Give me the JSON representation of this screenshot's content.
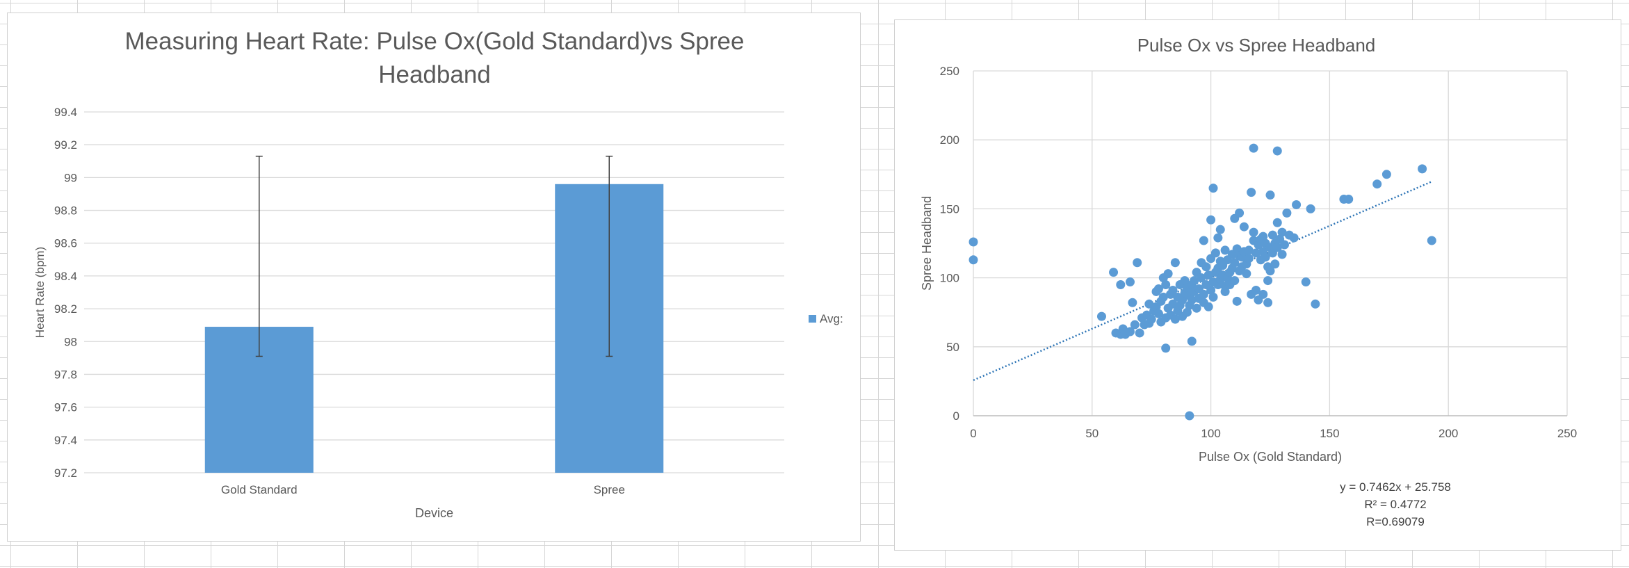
{
  "chart_data": [
    {
      "type": "bar",
      "title_lines": [
        "Measuring Heart Rate:  Pulse Ox(Gold Standard)vs Spree",
        "Headband"
      ],
      "xlabel": "Device",
      "ylabel": "Heart Rate (bpm)",
      "categories": [
        "Gold Standard",
        "Spree"
      ],
      "series": [
        {
          "name": "Avg:",
          "values": [
            98.09,
            98.96
          ],
          "error_low": [
            97.91,
            97.91
          ],
          "error_high": [
            99.13,
            99.13
          ]
        }
      ],
      "ylim": [
        97.2,
        99.4
      ],
      "yticks": [
        97.2,
        97.4,
        97.6,
        97.8,
        98,
        98.2,
        98.4,
        98.6,
        98.8,
        99,
        99.2,
        99.4
      ],
      "ytick_labels": [
        "97.2",
        "97.4",
        "97.6",
        "97.8",
        "98",
        "98.2",
        "98.4",
        "98.6",
        "98.8",
        "99",
        "99.2",
        "99.4"
      ],
      "grid": true,
      "legend_position": "right",
      "colors": {
        "bar": "#5b9bd5",
        "error": "#404040",
        "grid": "#d9d9d9",
        "text": "#595959"
      }
    },
    {
      "type": "scatter",
      "title": "Pulse Ox vs Spree Headband",
      "xlabel": "Pulse Ox (Gold Standard)",
      "ylabel": "Spree Headband",
      "xlim": [
        0,
        250
      ],
      "ylim": [
        0,
        250
      ],
      "xticks": [
        0,
        50,
        100,
        150,
        200,
        250
      ],
      "xtick_labels": [
        "0",
        "50",
        "100",
        "150",
        "200",
        "250"
      ],
      "yticks": [
        0,
        50,
        100,
        150,
        200,
        250
      ],
      "ytick_labels": [
        "0",
        "50",
        "100",
        "150",
        "200",
        "250"
      ],
      "grid": true,
      "trendline": {
        "slope": 0.7462,
        "intercept": 25.758,
        "x_range": [
          0,
          193
        ]
      },
      "annotations": [
        "y = 0.7462x + 25.758",
        "R² = 0.4772",
        "R=0.69079"
      ],
      "colors": {
        "point": "#5b9bd5",
        "trend": "#2e75b6",
        "grid": "#d9d9d9",
        "text": "#595959"
      },
      "points": [
        [
          0,
          126
        ],
        [
          0,
          113
        ],
        [
          91,
          0
        ],
        [
          81,
          49
        ],
        [
          92,
          54
        ],
        [
          54,
          72
        ],
        [
          59,
          104
        ],
        [
          60,
          60
        ],
        [
          62,
          59
        ],
        [
          63,
          63
        ],
        [
          62,
          95
        ],
        [
          64,
          59
        ],
        [
          66,
          97
        ],
        [
          66,
          61
        ],
        [
          67,
          82
        ],
        [
          68,
          66
        ],
        [
          69,
          111
        ],
        [
          70,
          60
        ],
        [
          71,
          71
        ],
        [
          72,
          66
        ],
        [
          73,
          73
        ],
        [
          74,
          67
        ],
        [
          74,
          81
        ],
        [
          75,
          70
        ],
        [
          76,
          76
        ],
        [
          77,
          79
        ],
        [
          77,
          90
        ],
        [
          78,
          74
        ],
        [
          78,
          92
        ],
        [
          79,
          68
        ],
        [
          79,
          83
        ],
        [
          80,
          86
        ],
        [
          80,
          100
        ],
        [
          81,
          71
        ],
        [
          81,
          95
        ],
        [
          82,
          78
        ],
        [
          82,
          103
        ],
        [
          83,
          88
        ],
        [
          83,
          73
        ],
        [
          84,
          81
        ],
        [
          84,
          91
        ],
        [
          85,
          70
        ],
        [
          85,
          111
        ],
        [
          86,
          76
        ],
        [
          86,
          86
        ],
        [
          87,
          80
        ],
        [
          87,
          95
        ],
        [
          88,
          72
        ],
        [
          88,
          84
        ],
        [
          89,
          89
        ],
        [
          89,
          98
        ],
        [
          90,
          75
        ],
        [
          90,
          93
        ],
        [
          91,
          80
        ],
        [
          91,
          87
        ],
        [
          92,
          84
        ],
        [
          92,
          95
        ],
        [
          93,
          90
        ],
        [
          93,
          98
        ],
        [
          94,
          78
        ],
        [
          94,
          104
        ],
        [
          95,
          85
        ],
        [
          95,
          92
        ],
        [
          96,
          100
        ],
        [
          96,
          111
        ],
        [
          97,
          82
        ],
        [
          97,
          88
        ],
        [
          97,
          127
        ],
        [
          98,
          95
        ],
        [
          98,
          108
        ],
        [
          99,
          79
        ],
        [
          99,
          102
        ],
        [
          100,
          91
        ],
        [
          100,
          142
        ],
        [
          100,
          114
        ],
        [
          101,
          86
        ],
        [
          101,
          97
        ],
        [
          101,
          165
        ],
        [
          102,
          104
        ],
        [
          102,
          118
        ],
        [
          103,
          95
        ],
        [
          103,
          107
        ],
        [
          103,
          129
        ],
        [
          104,
          99
        ],
        [
          104,
          112
        ],
        [
          104,
          135
        ],
        [
          105,
          102
        ],
        [
          105,
          109
        ],
        [
          106,
          90
        ],
        [
          106,
          120
        ],
        [
          106,
          94
        ],
        [
          107,
          100
        ],
        [
          107,
          113
        ],
        [
          108,
          104
        ],
        [
          108,
          95
        ],
        [
          109,
          117
        ],
        [
          109,
          107
        ],
        [
          110,
          111
        ],
        [
          110,
          143
        ],
        [
          110,
          98
        ],
        [
          111,
          121
        ],
        [
          111,
          83
        ],
        [
          112,
          105
        ],
        [
          112,
          116
        ],
        [
          112,
          147
        ],
        [
          113,
          115
        ],
        [
          113,
          108
        ],
        [
          114,
          119
        ],
        [
          114,
          137
        ],
        [
          115,
          110
        ],
        [
          115,
          103
        ],
        [
          116,
          114
        ],
        [
          116,
          120
        ],
        [
          117,
          162
        ],
        [
          117,
          88
        ],
        [
          118,
          127
        ],
        [
          118,
          133
        ],
        [
          118,
          194
        ],
        [
          119,
          118
        ],
        [
          119,
          91
        ],
        [
          120,
          124
        ],
        [
          120,
          84
        ],
        [
          121,
          113
        ],
        [
          121,
          128
        ],
        [
          122,
          119
        ],
        [
          122,
          130
        ],
        [
          122,
          88
        ],
        [
          123,
          115
        ],
        [
          123,
          125
        ],
        [
          124,
          108
        ],
        [
          124,
          98
        ],
        [
          124,
          82
        ],
        [
          125,
          122
        ],
        [
          125,
          105
        ],
        [
          125,
          160
        ],
        [
          126,
          118
        ],
        [
          126,
          131
        ],
        [
          127,
          125
        ],
        [
          127,
          110
        ],
        [
          128,
          192
        ],
        [
          128,
          140
        ],
        [
          128,
          122
        ],
        [
          129,
          128
        ],
        [
          130,
          133
        ],
        [
          130,
          117
        ],
        [
          131,
          124
        ],
        [
          132,
          147
        ],
        [
          133,
          131
        ],
        [
          135,
          129
        ],
        [
          136,
          153
        ],
        [
          140,
          97
        ],
        [
          142,
          150
        ],
        [
          144,
          81
        ],
        [
          156,
          157
        ],
        [
          158,
          157
        ],
        [
          170,
          168
        ],
        [
          174,
          175
        ],
        [
          189,
          179
        ],
        [
          193,
          127
        ]
      ]
    }
  ]
}
